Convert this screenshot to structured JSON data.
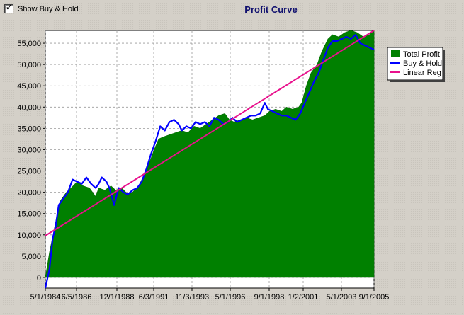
{
  "checkbox": {
    "label": "Show Buy & Hold",
    "checked": true
  },
  "chart_data": {
    "type": "area",
    "title": "Profit Curve",
    "xlabel": "",
    "ylabel": "",
    "x_tick_labels": [
      "5/1/1984",
      "6/5/1986",
      "12/1/1988",
      "6/3/1991",
      "11/3/1993",
      "5/1/1996",
      "9/1/1998",
      "1/2/2001",
      "5/1/2003",
      "9/1/2005"
    ],
    "y_tick_labels": [
      "0",
      "5,000",
      "10,000",
      "15,000",
      "20,000",
      "25,000",
      "30,000",
      "35,000",
      "40,000",
      "45,000",
      "50,000",
      "55,000"
    ],
    "ylim": [
      -2500,
      58000
    ],
    "grid": true,
    "legend_position": "right",
    "colors": {
      "total_profit": "#008000",
      "buy_hold": "#0000ff",
      "linear_reg": "#e8108c",
      "title": "#10106e",
      "plot_bg": "#ffffff"
    },
    "series": [
      {
        "name": "Total Profit",
        "style": "area",
        "x": [
          1984.33,
          1984.6,
          1985.0,
          1985.3,
          1985.7,
          1986.0,
          1986.4,
          1986.8,
          1987.2,
          1987.6,
          1987.8,
          1988.2,
          1988.6,
          1988.9,
          1989.3,
          1989.7,
          1990.0,
          1990.4,
          1990.8,
          1991.2,
          1991.4,
          1991.7,
          1992.0,
          1992.4,
          1992.8,
          1993.2,
          1993.6,
          1994.0,
          1994.4,
          1994.8,
          1995.2,
          1995.6,
          1996.0,
          1996.3,
          1996.6,
          1997.0,
          1997.4,
          1997.8,
          1998.2,
          1998.6,
          1998.9,
          1999.3,
          1999.7,
          2000.0,
          2000.4,
          2000.8,
          2001.0,
          2001.3,
          2001.6,
          2002.0,
          2002.3,
          2002.7,
          2003.0,
          2003.4,
          2003.8,
          2004.2,
          2004.6,
          2005.0,
          2005.4,
          2005.7
        ],
        "values": [
          0,
          6000,
          13000,
          18000,
          20000,
          21000,
          22500,
          21500,
          21000,
          19000,
          21000,
          20500,
          21500,
          20500,
          21000,
          19500,
          20000,
          21500,
          24500,
          28000,
          30000,
          32500,
          33000,
          33500,
          34000,
          34500,
          34000,
          35500,
          35000,
          36000,
          37000,
          38000,
          38500,
          37000,
          36500,
          37000,
          37500,
          37000,
          37500,
          38000,
          39000,
          39500,
          39000,
          40000,
          39500,
          40000,
          41000,
          45000,
          48000,
          50000,
          53000,
          56000,
          57000,
          56500,
          57500,
          58000,
          57500,
          56500,
          57000,
          58000
        ]
      },
      {
        "name": "Buy & Hold",
        "style": "line",
        "x": [
          1984.33,
          1984.6,
          1984.8,
          1985.0,
          1985.2,
          1985.5,
          1985.8,
          1986.1,
          1986.4,
          1986.7,
          1987.0,
          1987.3,
          1987.6,
          1987.8,
          1988.0,
          1988.3,
          1988.5,
          1988.8,
          1989.1,
          1989.4,
          1989.7,
          1990.0,
          1990.3,
          1990.6,
          1990.9,
          1991.2,
          1991.5,
          1991.8,
          1992.1,
          1992.4,
          1992.7,
          1993.0,
          1993.2,
          1993.5,
          1993.8,
          1994.1,
          1994.4,
          1994.7,
          1995.0,
          1995.3,
          1995.6,
          1995.9,
          1996.2,
          1996.5,
          1996.8,
          1997.1,
          1997.4,
          1997.7,
          1998.0,
          1998.3,
          1998.6,
          1998.8,
          1999.1,
          1999.4,
          1999.7,
          2000.0,
          2000.3,
          2000.6,
          2000.9,
          2001.2,
          2001.5,
          2001.8,
          2002.1,
          2002.4,
          2002.7,
          2003.0,
          2003.3,
          2003.6,
          2003.9,
          2004.2,
          2004.5,
          2004.8,
          2005.1,
          2005.4,
          2005.7
        ],
        "values": [
          -2500,
          2000,
          9000,
          12000,
          17000,
          18500,
          20000,
          23000,
          22500,
          22000,
          23500,
          22000,
          21000,
          22000,
          23500,
          22500,
          21000,
          17000,
          21000,
          20000,
          19500,
          20500,
          21000,
          22500,
          25500,
          29000,
          32000,
          35500,
          34500,
          36500,
          37000,
          36000,
          34500,
          35500,
          35000,
          36500,
          36000,
          36500,
          35500,
          37500,
          37000,
          36000,
          36500,
          37500,
          36500,
          37000,
          37500,
          38000,
          38000,
          38500,
          41000,
          39500,
          39000,
          38500,
          38000,
          38000,
          37500,
          37000,
          38500,
          41000,
          43500,
          46000,
          48000,
          51000,
          54000,
          55500,
          55500,
          56000,
          56500,
          56000,
          57000,
          55000,
          54500,
          54000,
          53500
        ]
      },
      {
        "name": "Linear Reg",
        "style": "line",
        "x": [
          1984.33,
          2005.7
        ],
        "values": [
          9800,
          58000
        ]
      }
    ]
  }
}
